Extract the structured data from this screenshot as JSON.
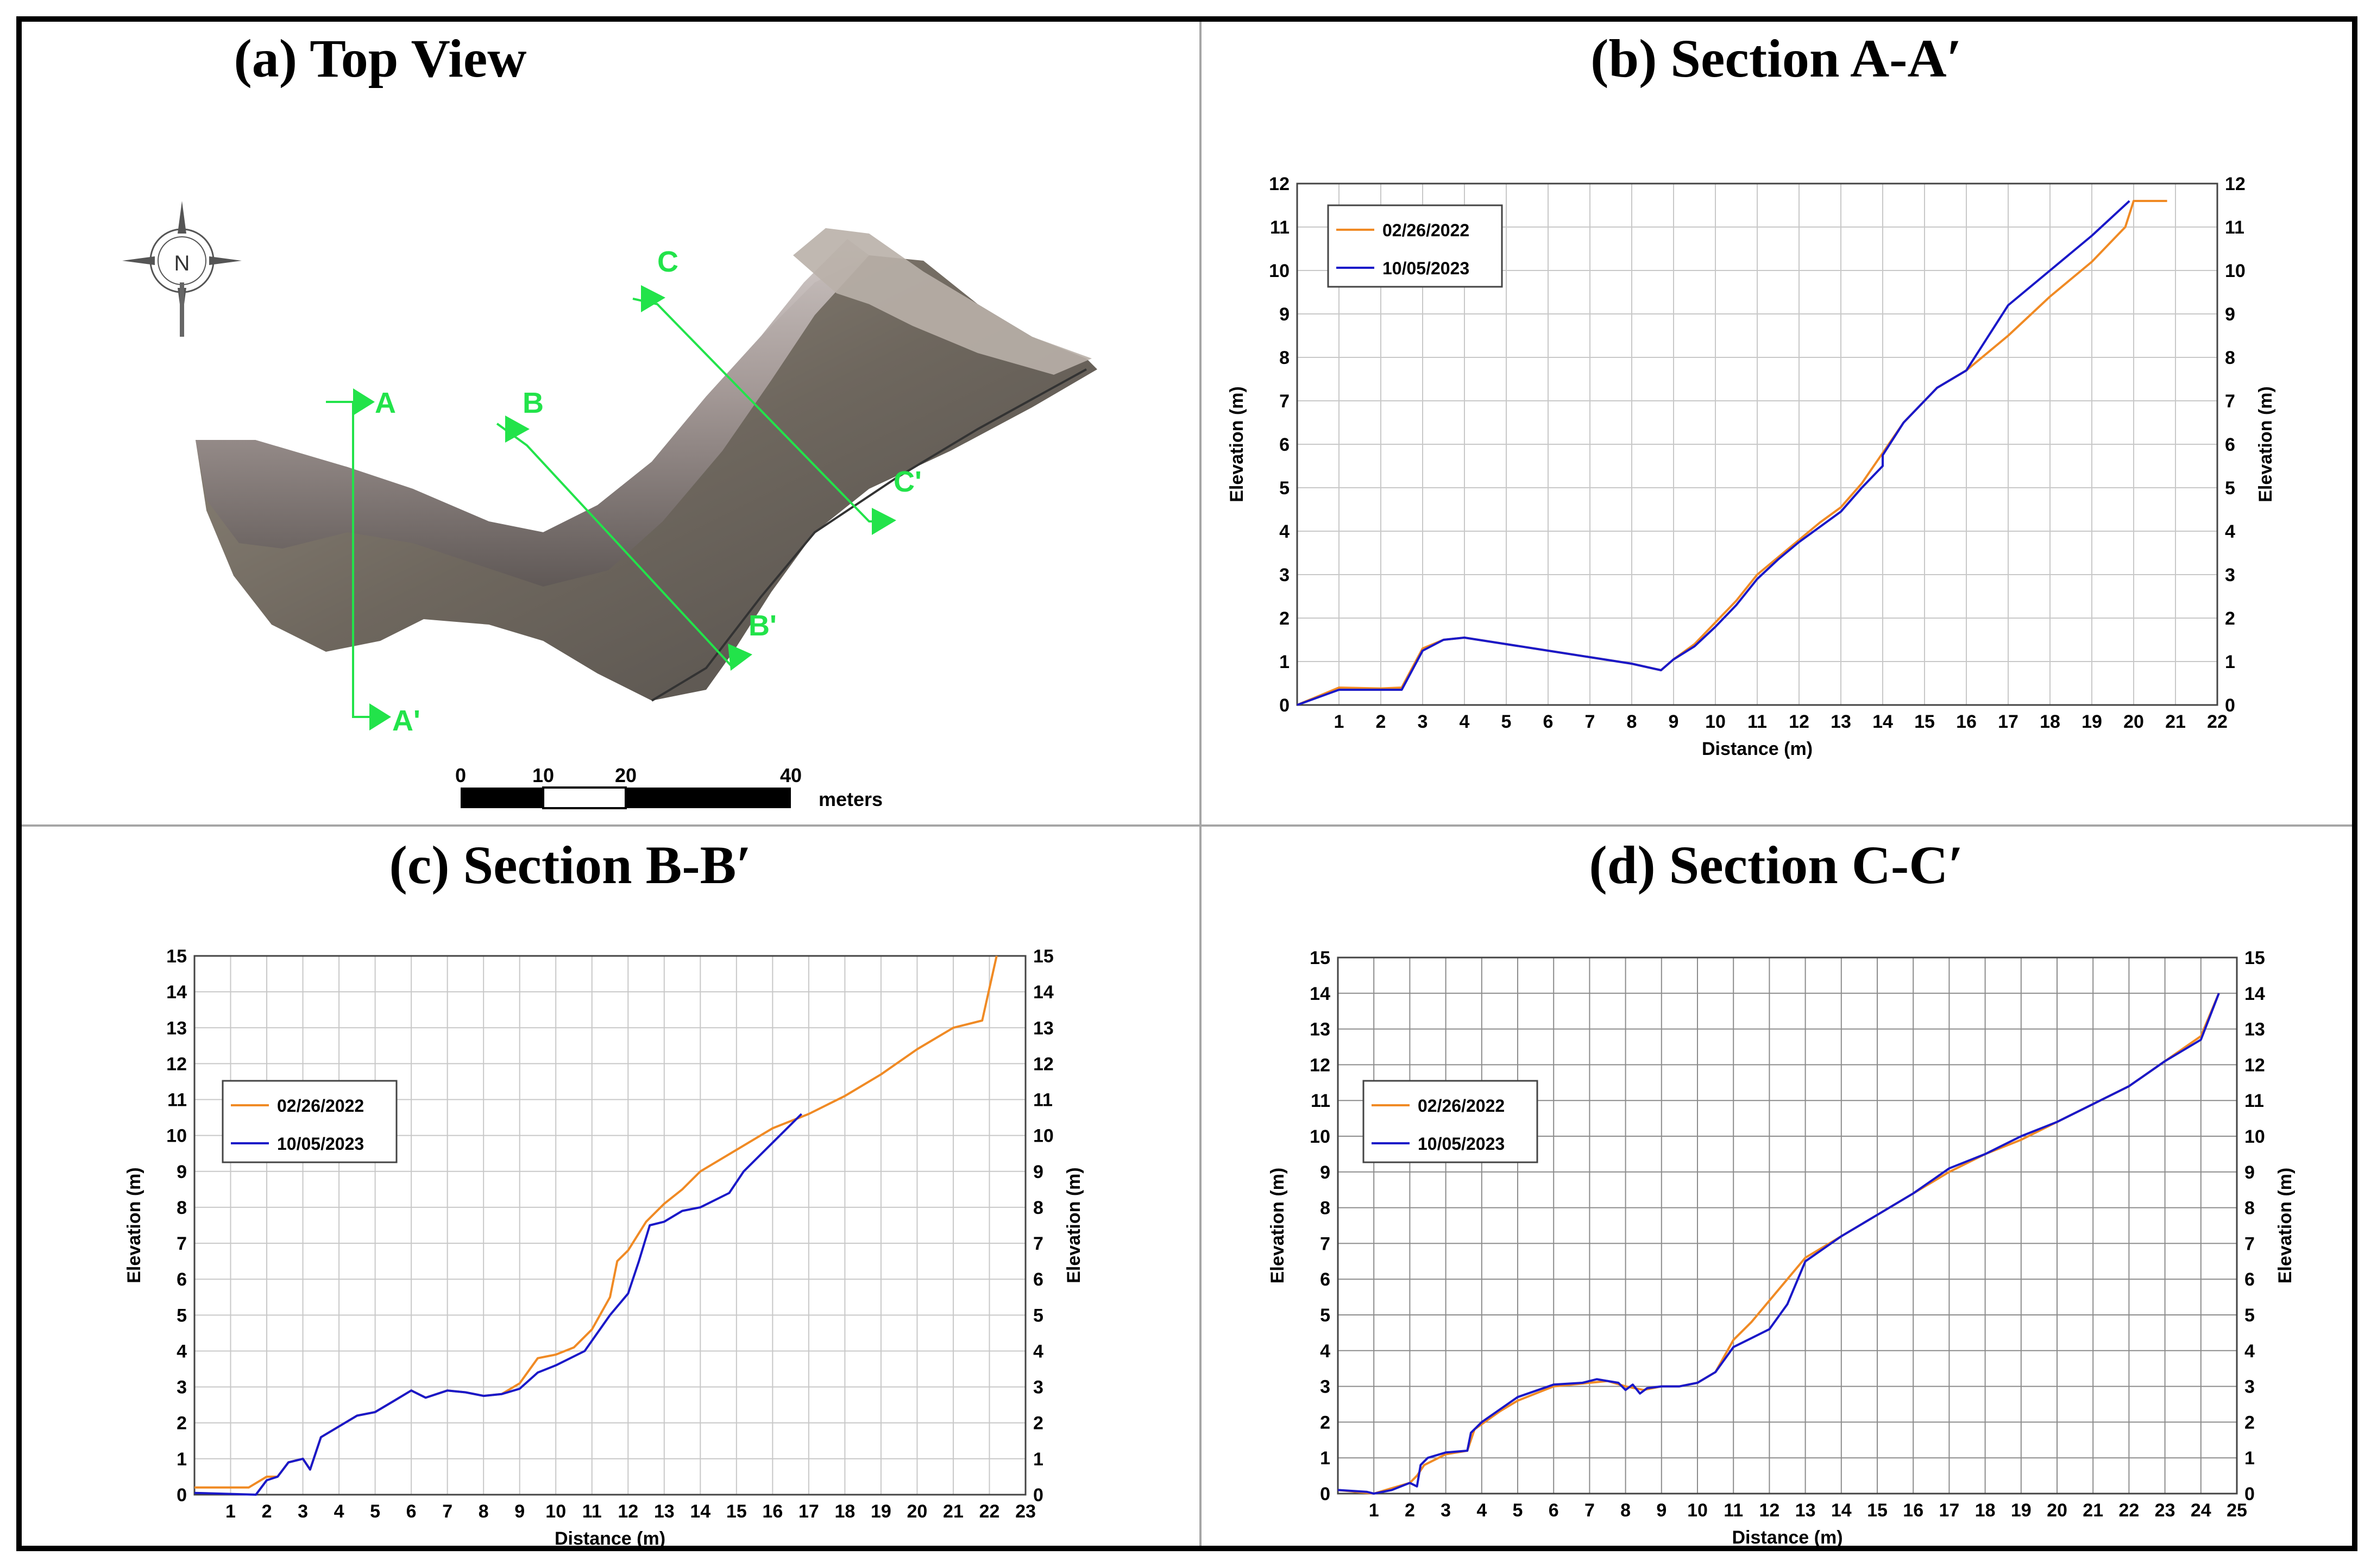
{
  "panels": {
    "a": {
      "title": "(a) Top View"
    },
    "b": {
      "title": "(b) Section A-A′"
    },
    "c": {
      "title": "(c) Section B-B′"
    },
    "d": {
      "title": "(d) Section C-C′"
    }
  },
  "top_view": {
    "compass_label": "N",
    "section_labels": [
      "A",
      "A'",
      "B",
      "B'",
      "C",
      "C'"
    ],
    "scale_bar": {
      "ticks": [
        "0",
        "10",
        "20",
        "40"
      ],
      "unit": "meters"
    }
  },
  "colors": {
    "orange": "#f08a24",
    "blue": "#1a18c8",
    "section_green": "#22e34a",
    "grid": "#c8c8c8",
    "grid_dark": "#8c8c8c"
  },
  "chart_data": [
    {
      "id": "b",
      "type": "line",
      "title": "(b) Section A-A′",
      "xlabel": "Distance (m)",
      "ylabel": "Elevation (m)",
      "xlim": [
        0,
        22
      ],
      "ylim": [
        0,
        12
      ],
      "xticks": [
        "1",
        "2",
        "3",
        "4",
        "5",
        "6",
        "7",
        "8",
        "9",
        "10",
        "11",
        "12",
        "13",
        "14",
        "15",
        "16",
        "17",
        "18",
        "19",
        "20",
        "21",
        "22"
      ],
      "yticks": [
        "0",
        "1",
        "2",
        "3",
        "4",
        "5",
        "6",
        "7",
        "8",
        "9",
        "10",
        "11",
        "12"
      ],
      "legend": "top-left",
      "series": [
        {
          "name": "02/26/2022",
          "color": "#f08a24",
          "points": [
            [
              0,
              0
            ],
            [
              1,
              0.4
            ],
            [
              2,
              0.38
            ],
            [
              2.5,
              0.4
            ],
            [
              3,
              1.3
            ],
            [
              3.5,
              1.5
            ],
            [
              4,
              1.55
            ],
            [
              5,
              1.4
            ],
            [
              6,
              1.25
            ],
            [
              7,
              1.1
            ],
            [
              8,
              0.95
            ],
            [
              8.7,
              0.8
            ],
            [
              9,
              1.05
            ],
            [
              9.5,
              1.4
            ],
            [
              10,
              1.9
            ],
            [
              10.5,
              2.4
            ],
            [
              11,
              3.0
            ],
            [
              11.5,
              3.4
            ],
            [
              12,
              3.8
            ],
            [
              12.5,
              4.2
            ],
            [
              13,
              4.55
            ],
            [
              13.5,
              5.1
            ],
            [
              14,
              5.8
            ],
            [
              14.5,
              6.5
            ],
            [
              15,
              7.0
            ],
            [
              15.3,
              7.3
            ],
            [
              16,
              7.7
            ],
            [
              17,
              8.5
            ],
            [
              18,
              9.4
            ],
            [
              19,
              10.2
            ],
            [
              19.8,
              11.0
            ],
            [
              20,
              11.6
            ],
            [
              20.8,
              11.6
            ]
          ]
        },
        {
          "name": "10/05/2023",
          "color": "#1a18c8",
          "points": [
            [
              0,
              0
            ],
            [
              1,
              0.35
            ],
            [
              2,
              0.35
            ],
            [
              2.5,
              0.35
            ],
            [
              3,
              1.25
            ],
            [
              3.5,
              1.5
            ],
            [
              4,
              1.55
            ],
            [
              5,
              1.4
            ],
            [
              6,
              1.25
            ],
            [
              7,
              1.1
            ],
            [
              8,
              0.95
            ],
            [
              8.7,
              0.8
            ],
            [
              9,
              1.05
            ],
            [
              9.5,
              1.35
            ],
            [
              10,
              1.8
            ],
            [
              10.5,
              2.3
            ],
            [
              11,
              2.9
            ],
            [
              11.5,
              3.35
            ],
            [
              12,
              3.75
            ],
            [
              12.5,
              4.1
            ],
            [
              13,
              4.45
            ],
            [
              13.5,
              5.0
            ],
            [
              14,
              5.5
            ],
            [
              14,
              5.75
            ],
            [
              14.5,
              6.5
            ],
            [
              15,
              7.0
            ],
            [
              15.3,
              7.3
            ],
            [
              16,
              7.7
            ],
            [
              17,
              9.2
            ],
            [
              18,
              10.0
            ],
            [
              19,
              10.8
            ],
            [
              19.9,
              11.6
            ]
          ]
        }
      ]
    },
    {
      "id": "c",
      "type": "line",
      "title": "(c) Section B-B′",
      "xlabel": "Distance (m)",
      "ylabel": "Elevation (m)",
      "xlim": [
        0,
        23
      ],
      "ylim": [
        0,
        15
      ],
      "xticks": [
        "1",
        "2",
        "3",
        "4",
        "5",
        "6",
        "7",
        "8",
        "9",
        "10",
        "11",
        "12",
        "13",
        "14",
        "15",
        "16",
        "17",
        "18",
        "19",
        "20",
        "21",
        "22",
        "23"
      ],
      "yticks": [
        "0",
        "1",
        "2",
        "3",
        "4",
        "5",
        "6",
        "7",
        "8",
        "9",
        "10",
        "11",
        "12",
        "13",
        "14",
        "15"
      ],
      "legend": "left",
      "series": [
        {
          "name": "02/26/2022",
          "color": "#f08a24",
          "points": [
            [
              0,
              0.2
            ],
            [
              1.5,
              0.2
            ],
            [
              2,
              0.5
            ],
            [
              2.3,
              0.5
            ],
            [
              2.6,
              0.9
            ],
            [
              3,
              1.0
            ],
            [
              3.2,
              0.7
            ],
            [
              3.5,
              1.6
            ],
            [
              4,
              1.9
            ],
            [
              4.5,
              2.2
            ],
            [
              5,
              2.3
            ],
            [
              5.5,
              2.6
            ],
            [
              6,
              2.9
            ],
            [
              6.4,
              2.7
            ],
            [
              7,
              2.9
            ],
            [
              7.5,
              2.85
            ],
            [
              8,
              2.75
            ],
            [
              8.5,
              2.8
            ],
            [
              9,
              3.1
            ],
            [
              9.5,
              3.8
            ],
            [
              10,
              3.9
            ],
            [
              10.5,
              4.1
            ],
            [
              11,
              4.6
            ],
            [
              11.5,
              5.5
            ],
            [
              11.7,
              6.5
            ],
            [
              12,
              6.8
            ],
            [
              12.5,
              7.6
            ],
            [
              13,
              8.1
            ],
            [
              13.5,
              8.5
            ],
            [
              14,
              9.0
            ],
            [
              15,
              9.6
            ],
            [
              16,
              10.2
            ],
            [
              17,
              10.6
            ],
            [
              18,
              11.1
            ],
            [
              19,
              11.7
            ],
            [
              20,
              12.4
            ],
            [
              21,
              13.0
            ],
            [
              21.8,
              13.2
            ],
            [
              22.2,
              15.0
            ]
          ]
        },
        {
          "name": "10/05/2023",
          "color": "#1a18c8",
          "points": [
            [
              0,
              0.05
            ],
            [
              1.7,
              0.0
            ],
            [
              2,
              0.4
            ],
            [
              2.3,
              0.5
            ],
            [
              2.6,
              0.9
            ],
            [
              3,
              1.0
            ],
            [
              3.2,
              0.7
            ],
            [
              3.5,
              1.6
            ],
            [
              4,
              1.9
            ],
            [
              4.5,
              2.2
            ],
            [
              5,
              2.3
            ],
            [
              5.5,
              2.6
            ],
            [
              6,
              2.9
            ],
            [
              6.4,
              2.7
            ],
            [
              7,
              2.9
            ],
            [
              7.5,
              2.85
            ],
            [
              8,
              2.75
            ],
            [
              8.5,
              2.8
            ],
            [
              9,
              2.95
            ],
            [
              9.5,
              3.4
            ],
            [
              10,
              3.6
            ],
            [
              10.8,
              4.0
            ],
            [
              11.5,
              5.0
            ],
            [
              12,
              5.6
            ],
            [
              12.3,
              6.5
            ],
            [
              12.6,
              7.5
            ],
            [
              13,
              7.6
            ],
            [
              13.5,
              7.9
            ],
            [
              14,
              8.0
            ],
            [
              14.8,
              8.4
            ],
            [
              15.2,
              9.0
            ],
            [
              16,
              9.8
            ],
            [
              16.8,
              10.6
            ]
          ]
        }
      ]
    },
    {
      "id": "d",
      "type": "line",
      "title": "(d) Section C-C′",
      "xlabel": "Distance (m)",
      "ylabel": "Elevation (m)",
      "xlim": [
        0,
        25
      ],
      "ylim": [
        0,
        15
      ],
      "xticks": [
        "1",
        "2",
        "3",
        "4",
        "5",
        "6",
        "7",
        "8",
        "9",
        "10",
        "11",
        "12",
        "13",
        "14",
        "15",
        "16",
        "17",
        "18",
        "19",
        "20",
        "21",
        "22",
        "23",
        "24",
        "25"
      ],
      "yticks": [
        "0",
        "1",
        "2",
        "3",
        "4",
        "5",
        "6",
        "7",
        "8",
        "9",
        "10",
        "11",
        "12",
        "13",
        "14",
        "15"
      ],
      "legend": "left",
      "series": [
        {
          "name": "02/26/2022",
          "color": "#f08a24",
          "points": [
            [
              0,
              0.1
            ],
            [
              1,
              0.0
            ],
            [
              1.5,
              0.15
            ],
            [
              2,
              0.3
            ],
            [
              2.2,
              0.5
            ],
            [
              2.4,
              0.8
            ],
            [
              3,
              1.1
            ],
            [
              3.6,
              1.2
            ],
            [
              3.8,
              1.8
            ],
            [
              4.5,
              2.3
            ],
            [
              5,
              2.6
            ],
            [
              6,
              3.0
            ],
            [
              7,
              3.1
            ],
            [
              7.5,
              3.15
            ],
            [
              8,
              3.0
            ],
            [
              8.5,
              2.9
            ],
            [
              9,
              3.0
            ],
            [
              9.5,
              3.0
            ],
            [
              10,
              3.1
            ],
            [
              10.5,
              3.4
            ],
            [
              11,
              4.3
            ],
            [
              11.5,
              4.8
            ],
            [
              12,
              5.4
            ],
            [
              12.5,
              6.0
            ],
            [
              13,
              6.6
            ],
            [
              14,
              7.2
            ],
            [
              15,
              7.8
            ],
            [
              16,
              8.4
            ],
            [
              17,
              9.0
            ],
            [
              18,
              9.5
            ],
            [
              19,
              9.9
            ],
            [
              20,
              10.4
            ],
            [
              21,
              10.9
            ],
            [
              22,
              11.4
            ],
            [
              23,
              12.1
            ],
            [
              24,
              12.8
            ],
            [
              24.5,
              14.0
            ]
          ]
        },
        {
          "name": "10/05/2023",
          "color": "#1a18c8",
          "points": [
            [
              0,
              0.1
            ],
            [
              0.8,
              0.05
            ],
            [
              1,
              0.0
            ],
            [
              1.5,
              0.1
            ],
            [
              2,
              0.3
            ],
            [
              2.2,
              0.2
            ],
            [
              2.3,
              0.8
            ],
            [
              2.5,
              1.0
            ],
            [
              3,
              1.15
            ],
            [
              3.6,
              1.2
            ],
            [
              3.7,
              1.7
            ],
            [
              4,
              2.0
            ],
            [
              5,
              2.7
            ],
            [
              6,
              3.05
            ],
            [
              6.8,
              3.1
            ],
            [
              7.2,
              3.2
            ],
            [
              7.8,
              3.1
            ],
            [
              8,
              2.9
            ],
            [
              8.2,
              3.05
            ],
            [
              8.4,
              2.8
            ],
            [
              8.6,
              2.95
            ],
            [
              9,
              3.0
            ],
            [
              9.5,
              3.0
            ],
            [
              10,
              3.1
            ],
            [
              10.5,
              3.4
            ],
            [
              11,
              4.1
            ],
            [
              11.5,
              4.35
            ],
            [
              12,
              4.6
            ],
            [
              12.5,
              5.3
            ],
            [
              13,
              6.5
            ],
            [
              14,
              7.2
            ],
            [
              15,
              7.8
            ],
            [
              16,
              8.4
            ],
            [
              17,
              9.1
            ],
            [
              18,
              9.5
            ],
            [
              19,
              10.0
            ],
            [
              20,
              10.4
            ],
            [
              21,
              10.9
            ],
            [
              22,
              11.4
            ],
            [
              23,
              12.1
            ],
            [
              24,
              12.7
            ],
            [
              24.5,
              14.0
            ]
          ]
        }
      ]
    }
  ]
}
